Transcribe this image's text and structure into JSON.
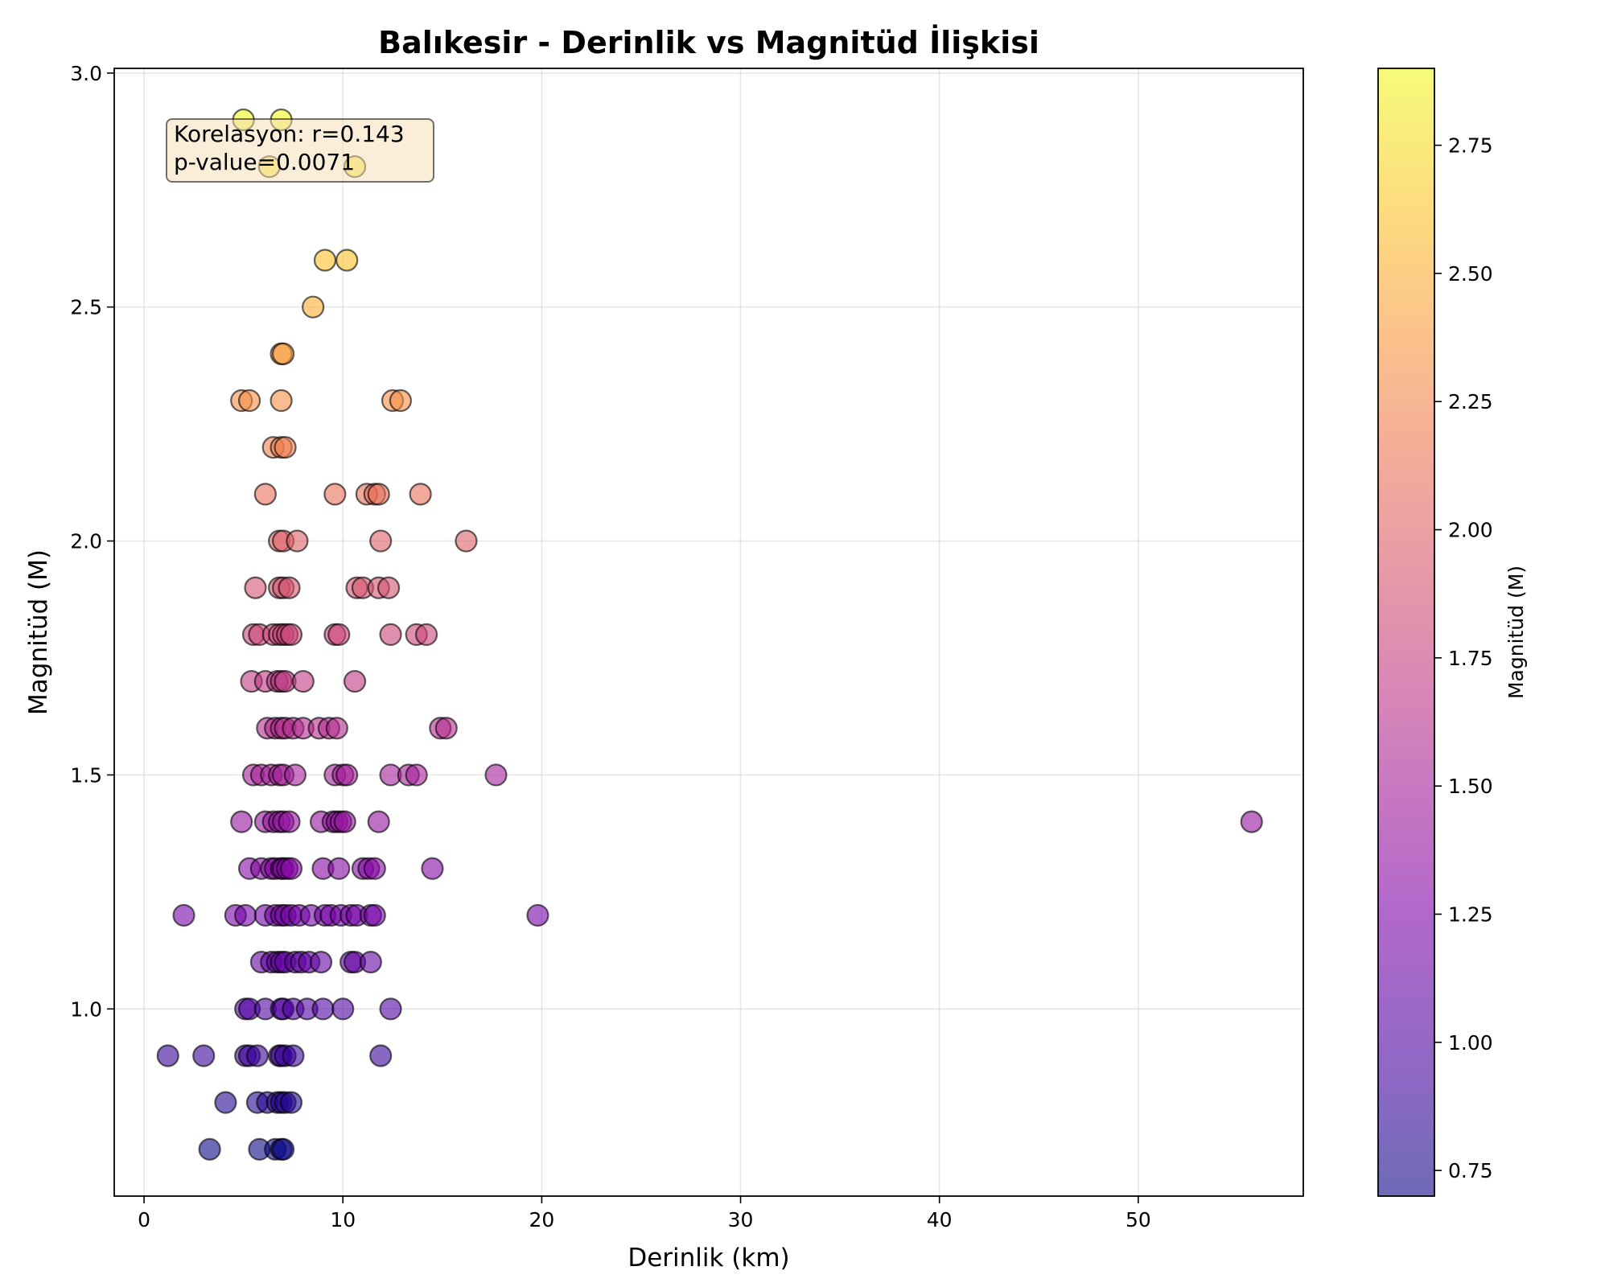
{
  "chart_data": {
    "type": "scatter",
    "title": "Balıkesir - Derinlik vs Magnitüd İlişkisi",
    "xlabel": "Derinlik (km)",
    "ylabel": "Magnitüd (M)",
    "xlim": [
      -1.5,
      58.3
    ],
    "ylim": [
      0.6,
      3.01
    ],
    "xticks": [
      0,
      10,
      20,
      30,
      40,
      50
    ],
    "xtick_labels": [
      "0",
      "10",
      "20",
      "30",
      "40",
      "50"
    ],
    "yticks": [
      1.0,
      1.5,
      2.0,
      2.5,
      3.0
    ],
    "ytick_labels": [
      "1.0",
      "1.5",
      "2.0",
      "2.5",
      "3.0"
    ],
    "grid": true,
    "colormap": "plasma",
    "marker_alpha": 0.6,
    "colorbar": {
      "label": "Magnitüd (M)",
      "range": [
        0.7,
        2.9
      ],
      "ticks": [
        0.75,
        1.0,
        1.25,
        1.5,
        1.75,
        2.0,
        2.25,
        2.5,
        2.75
      ],
      "tick_labels": [
        "0.75",
        "1.00",
        "1.25",
        "1.50",
        "1.75",
        "2.00",
        "2.25",
        "2.50",
        "2.75"
      ]
    },
    "annotation": {
      "lines": [
        "Korelasyon: r=0.143",
        "p-value=0.0071"
      ],
      "box_color": "#f5deb3",
      "placement": "top-left"
    },
    "points": [
      [
        5.0,
        2.9
      ],
      [
        6.9,
        2.9
      ],
      [
        6.3,
        2.8
      ],
      [
        10.6,
        2.8
      ],
      [
        9.1,
        2.6
      ],
      [
        10.2,
        2.6
      ],
      [
        8.5,
        2.5
      ],
      [
        6.9,
        2.4
      ],
      [
        7.0,
        2.4
      ],
      [
        4.9,
        2.3
      ],
      [
        5.3,
        2.3
      ],
      [
        6.9,
        2.3
      ],
      [
        12.5,
        2.3
      ],
      [
        12.9,
        2.3
      ],
      [
        6.5,
        2.2
      ],
      [
        6.9,
        2.2
      ],
      [
        7.1,
        2.2
      ],
      [
        6.1,
        2.1
      ],
      [
        9.6,
        2.1
      ],
      [
        11.2,
        2.1
      ],
      [
        11.6,
        2.1
      ],
      [
        11.8,
        2.1
      ],
      [
        13.9,
        2.1
      ],
      [
        6.8,
        2.0
      ],
      [
        7.0,
        2.0
      ],
      [
        7.7,
        2.0
      ],
      [
        11.9,
        2.0
      ],
      [
        16.2,
        2.0
      ],
      [
        5.6,
        1.9
      ],
      [
        6.8,
        1.9
      ],
      [
        7.0,
        1.9
      ],
      [
        7.3,
        1.9
      ],
      [
        10.7,
        1.9
      ],
      [
        11.0,
        1.9
      ],
      [
        11.8,
        1.9
      ],
      [
        12.3,
        1.9
      ],
      [
        5.5,
        1.8
      ],
      [
        5.8,
        1.8
      ],
      [
        6.5,
        1.8
      ],
      [
        6.8,
        1.8
      ],
      [
        7.0,
        1.8
      ],
      [
        7.2,
        1.8
      ],
      [
        7.4,
        1.8
      ],
      [
        9.6,
        1.8
      ],
      [
        9.8,
        1.8
      ],
      [
        12.4,
        1.8
      ],
      [
        13.7,
        1.8
      ],
      [
        14.2,
        1.8
      ],
      [
        5.4,
        1.7
      ],
      [
        6.1,
        1.7
      ],
      [
        6.7,
        1.7
      ],
      [
        6.9,
        1.7
      ],
      [
        7.1,
        1.7
      ],
      [
        8.0,
        1.7
      ],
      [
        10.6,
        1.7
      ],
      [
        6.2,
        1.6
      ],
      [
        6.6,
        1.6
      ],
      [
        6.9,
        1.6
      ],
      [
        7.1,
        1.6
      ],
      [
        7.5,
        1.6
      ],
      [
        8.0,
        1.6
      ],
      [
        8.8,
        1.6
      ],
      [
        9.3,
        1.6
      ],
      [
        9.7,
        1.6
      ],
      [
        14.9,
        1.6
      ],
      [
        15.2,
        1.6
      ],
      [
        5.5,
        1.5
      ],
      [
        5.9,
        1.5
      ],
      [
        6.4,
        1.5
      ],
      [
        6.8,
        1.5
      ],
      [
        7.0,
        1.5
      ],
      [
        7.6,
        1.5
      ],
      [
        9.6,
        1.5
      ],
      [
        10.0,
        1.5
      ],
      [
        10.2,
        1.5
      ],
      [
        12.4,
        1.5
      ],
      [
        13.3,
        1.5
      ],
      [
        13.7,
        1.5
      ],
      [
        17.7,
        1.5
      ],
      [
        4.9,
        1.4
      ],
      [
        6.1,
        1.4
      ],
      [
        6.5,
        1.4
      ],
      [
        6.8,
        1.4
      ],
      [
        7.0,
        1.4
      ],
      [
        7.3,
        1.4
      ],
      [
        8.9,
        1.4
      ],
      [
        9.5,
        1.4
      ],
      [
        9.7,
        1.4
      ],
      [
        9.9,
        1.4
      ],
      [
        10.1,
        1.4
      ],
      [
        11.8,
        1.4
      ],
      [
        55.7,
        1.4
      ],
      [
        5.3,
        1.3
      ],
      [
        5.9,
        1.3
      ],
      [
        6.4,
        1.3
      ],
      [
        6.6,
        1.3
      ],
      [
        6.9,
        1.3
      ],
      [
        7.0,
        1.3
      ],
      [
        7.2,
        1.3
      ],
      [
        7.4,
        1.3
      ],
      [
        9.0,
        1.3
      ],
      [
        9.8,
        1.3
      ],
      [
        11.0,
        1.3
      ],
      [
        11.3,
        1.3
      ],
      [
        11.6,
        1.3
      ],
      [
        14.5,
        1.3
      ],
      [
        2.0,
        1.2
      ],
      [
        4.6,
        1.2
      ],
      [
        5.1,
        1.2
      ],
      [
        6.1,
        1.2
      ],
      [
        6.6,
        1.2
      ],
      [
        6.9,
        1.2
      ],
      [
        7.1,
        1.2
      ],
      [
        7.4,
        1.2
      ],
      [
        7.8,
        1.2
      ],
      [
        8.4,
        1.2
      ],
      [
        9.1,
        1.2
      ],
      [
        9.4,
        1.2
      ],
      [
        9.9,
        1.2
      ],
      [
        10.4,
        1.2
      ],
      [
        10.7,
        1.2
      ],
      [
        11.4,
        1.2
      ],
      [
        11.6,
        1.2
      ],
      [
        19.8,
        1.2
      ],
      [
        5.9,
        1.1
      ],
      [
        6.4,
        1.1
      ],
      [
        6.7,
        1.1
      ],
      [
        6.9,
        1.1
      ],
      [
        7.1,
        1.1
      ],
      [
        7.6,
        1.1
      ],
      [
        7.9,
        1.1
      ],
      [
        8.3,
        1.1
      ],
      [
        8.9,
        1.1
      ],
      [
        10.4,
        1.1
      ],
      [
        10.6,
        1.1
      ],
      [
        11.4,
        1.1
      ],
      [
        5.1,
        1.0
      ],
      [
        5.3,
        1.0
      ],
      [
        6.1,
        1.0
      ],
      [
        6.9,
        1.0
      ],
      [
        7.0,
        1.0
      ],
      [
        7.5,
        1.0
      ],
      [
        8.2,
        1.0
      ],
      [
        9.0,
        1.0
      ],
      [
        10.0,
        1.0
      ],
      [
        12.4,
        1.0
      ],
      [
        1.2,
        0.9
      ],
      [
        3.0,
        0.9
      ],
      [
        5.1,
        0.9
      ],
      [
        5.3,
        0.9
      ],
      [
        5.7,
        0.9
      ],
      [
        6.8,
        0.9
      ],
      [
        6.9,
        0.9
      ],
      [
        7.1,
        0.9
      ],
      [
        7.5,
        0.9
      ],
      [
        11.9,
        0.9
      ],
      [
        4.1,
        0.8
      ],
      [
        5.7,
        0.8
      ],
      [
        6.2,
        0.8
      ],
      [
        6.7,
        0.8
      ],
      [
        6.9,
        0.8
      ],
      [
        7.1,
        0.8
      ],
      [
        7.4,
        0.8
      ],
      [
        3.3,
        0.7
      ],
      [
        5.8,
        0.7
      ],
      [
        6.6,
        0.7
      ],
      [
        6.9,
        0.7
      ],
      [
        7.0,
        0.7
      ]
    ]
  }
}
